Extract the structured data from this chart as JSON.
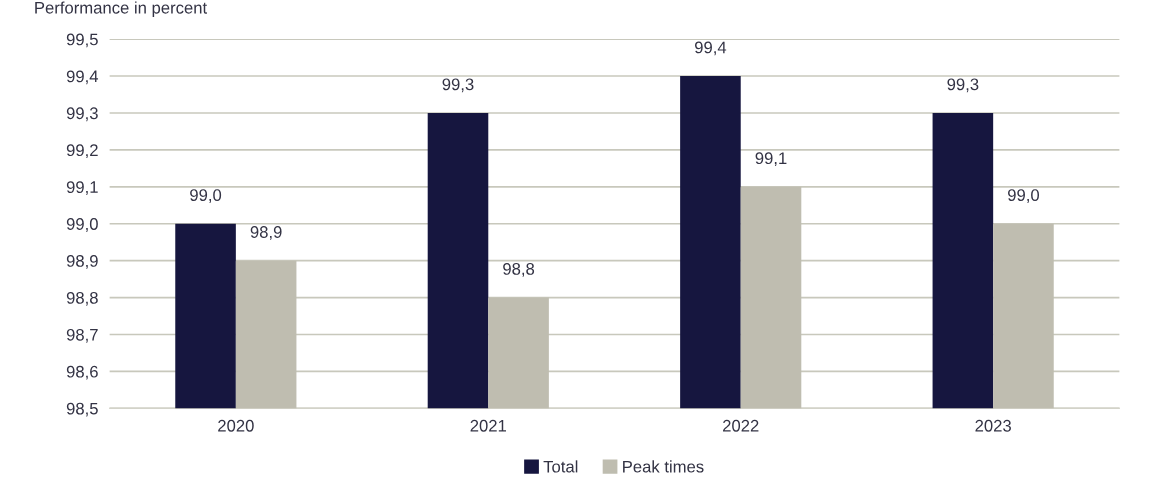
{
  "chart_data": {
    "type": "bar",
    "ylabel": "Performance in percent",
    "categories": [
      "2020",
      "2021",
      "2022",
      "2023"
    ],
    "series": [
      {
        "name": "Total",
        "color": "#16163f",
        "values": [
          99.0,
          99.3,
          99.4,
          99.3
        ],
        "value_labels": [
          "99,0",
          "99,3",
          "99,4",
          "99,3"
        ]
      },
      {
        "name": "Peak times",
        "color": "#bfbdb0",
        "values": [
          98.9,
          98.8,
          99.1,
          99.0
        ],
        "value_labels": [
          "98,9",
          "98,8",
          "99,1",
          "99,0"
        ]
      }
    ],
    "ylim": [
      98.5,
      99.5
    ],
    "yticks": [
      {
        "value": 98.5,
        "label": "98,5"
      },
      {
        "value": 98.6,
        "label": "98,6"
      },
      {
        "value": 98.7,
        "label": "98,7"
      },
      {
        "value": 98.8,
        "label": "98,8"
      },
      {
        "value": 98.9,
        "label": "98,9"
      },
      {
        "value": 99.0,
        "label": "99,0"
      },
      {
        "value": 99.1,
        "label": "99,1"
      },
      {
        "value": 99.2,
        "label": "99,2"
      },
      {
        "value": 99.3,
        "label": "99,3"
      },
      {
        "value": 99.4,
        "label": "99,4"
      },
      {
        "value": 99.5,
        "label": "99,5"
      }
    ],
    "grid": "y",
    "legend": "bottom"
  }
}
